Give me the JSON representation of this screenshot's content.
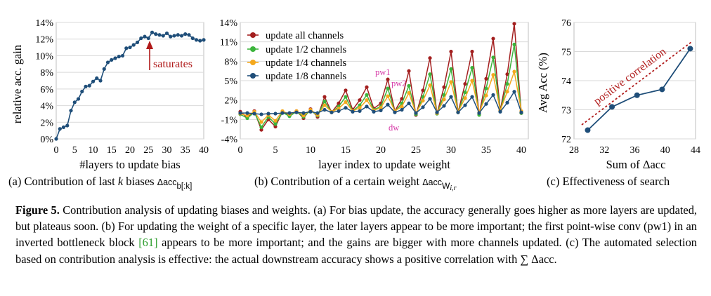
{
  "colors": {
    "blue": "#1f4e79",
    "red": "#a31f1f",
    "green": "#3cb43c",
    "orange": "#f4a81d",
    "anno_pink": "#d63aa8",
    "dark_red": "#b01a1a",
    "cite_green": "#2f9e2f"
  },
  "chart_data": [
    {
      "type": "line",
      "id": "a",
      "xlabel": "#layers to update bias",
      "ylabel": "relative acc. gain",
      "xlim": [
        0,
        40
      ],
      "ylim": [
        0,
        14
      ],
      "xticks": [
        "0",
        "5",
        "10",
        "15",
        "20",
        "25",
        "30",
        "35",
        "40"
      ],
      "yticks": [
        "0%",
        "2%",
        "4%",
        "6%",
        "8%",
        "10%",
        "12%",
        "14%"
      ],
      "series": [
        {
          "name": "bias",
          "x": [
            0,
            1,
            2,
            3,
            4,
            5,
            6,
            7,
            8,
            9,
            10,
            11,
            12,
            13,
            14,
            15,
            16,
            17,
            18,
            19,
            20,
            21,
            22,
            23,
            24,
            25,
            26,
            27,
            28,
            29,
            30,
            31,
            32,
            33,
            34,
            35,
            36,
            37,
            38,
            39,
            40
          ],
          "values": [
            0,
            1.2,
            1.4,
            1.6,
            3.4,
            4.4,
            4.8,
            5.7,
            6.3,
            6.4,
            6.9,
            7.3,
            7.0,
            8.4,
            9.2,
            9.5,
            9.7,
            9.9,
            10.0,
            10.9,
            11.0,
            11.3,
            11.6,
            12.1,
            12.3,
            12.1,
            12.8,
            12.6,
            12.5,
            12.4,
            12.7,
            12.3,
            12.4,
            12.5,
            12.4,
            12.6,
            12.5,
            12.1,
            11.9,
            11.8,
            11.9
          ]
        }
      ],
      "annotation": "saturates"
    },
    {
      "type": "line",
      "id": "b",
      "xlabel": "layer index to update weight",
      "ylabel": "",
      "xlim": [
        0,
        41
      ],
      "ylim": [
        -4,
        14
      ],
      "xticks": [
        "0",
        "5",
        "10",
        "15",
        "20",
        "25",
        "30",
        "35",
        "40"
      ],
      "yticks": [
        "-4%",
        "-1%",
        "2%",
        "5%",
        "8%",
        "11%",
        "14%"
      ],
      "legend": [
        "update all channels",
        "update 1/2 channels",
        "update 1/4 channels",
        "update 1/8 channels"
      ],
      "annotations": [
        "pw1",
        "pw2",
        "dw"
      ],
      "series": [
        {
          "name": "update all channels",
          "values": [
            0.2,
            -0.7,
            0.3,
            -2.6,
            -1.0,
            -2.1,
            0.2,
            -0.4,
            0.3,
            -0.8,
            0.6,
            -0.6,
            2.5,
            0.1,
            1.5,
            3.5,
            0.5,
            2.0,
            4.0,
            0.7,
            1.5,
            5.2,
            0.3,
            2.2,
            6.5,
            -0.3,
            3.5,
            8.5,
            -0.1,
            4.0,
            9.5,
            0.1,
            4.5,
            9.5,
            -0.2,
            5.3,
            11.5,
            0.4,
            6.0,
            13.8,
            0.0
          ]
        },
        {
          "name": "update 1/2 channels",
          "values": [
            -0.2,
            -0.8,
            0.1,
            -2.2,
            -0.6,
            -1.7,
            0.1,
            -0.5,
            0.2,
            -0.6,
            0.4,
            -0.4,
            1.8,
            0.1,
            1.0,
            2.5,
            0.3,
            1.2,
            2.8,
            0.5,
            1.0,
            3.8,
            0.2,
            1.5,
            4.2,
            -0.2,
            2.5,
            6.0,
            -0.1,
            2.8,
            6.8,
            0.1,
            3.2,
            7.0,
            -0.3,
            3.8,
            8.6,
            0.3,
            4.5,
            10.6,
            0.0
          ]
        },
        {
          "name": "update 1/4 channels",
          "values": [
            -0.1,
            -0.4,
            0.2,
            -1.4,
            -0.3,
            -1.2,
            0.3,
            -0.2,
            0.3,
            -0.4,
            0.5,
            -0.3,
            1.2,
            0.2,
            0.7,
            1.7,
            0.3,
            0.8,
            2.0,
            0.4,
            0.8,
            2.6,
            0.3,
            1.0,
            3.1,
            0.0,
            1.9,
            4.3,
            0.0,
            2.1,
            4.8,
            0.2,
            2.3,
            5.0,
            0.1,
            2.7,
            5.9,
            0.4,
            3.3,
            6.4,
            0.3
          ]
        },
        {
          "name": "update 1/8 channels",
          "values": [
            0.0,
            0.0,
            -0.1,
            -0.2,
            -0.1,
            -0.1,
            0.0,
            0.0,
            0.1,
            0.0,
            0.2,
            0.0,
            0.5,
            0.1,
            0.3,
            0.8,
            0.2,
            0.3,
            1.0,
            0.2,
            0.4,
            1.3,
            0.1,
            0.5,
            1.5,
            0.0,
            0.9,
            2.2,
            0.1,
            1.1,
            2.5,
            0.1,
            1.2,
            2.5,
            0.0,
            1.4,
            2.8,
            0.2,
            1.6,
            3.3,
            0.1
          ]
        }
      ]
    },
    {
      "type": "line",
      "id": "c",
      "xlabel": "Sum of Δacc",
      "ylabel": "Avg Acc (%)",
      "xlim": [
        28,
        44
      ],
      "ylim": [
        72,
        76
      ],
      "xticks": [
        "28",
        "32",
        "36",
        "40",
        "44"
      ],
      "yticks": [
        "72",
        "73",
        "74",
        "75",
        "76"
      ],
      "series": [
        {
          "name": "search",
          "x": [
            29.8,
            33.0,
            36.3,
            39.6,
            43.3
          ],
          "values": [
            72.3,
            73.1,
            73.5,
            73.7,
            75.1
          ]
        }
      ],
      "annotation": "positive correlation"
    }
  ],
  "subcaptions": {
    "a": "(a) Contribution of last",
    "a_var": "k",
    "a_mid": " biases ",
    "a_math": "Δacc",
    "a_sub": "b[:k]",
    "b": "(b) Contribution of a certain weight ",
    "b_math": "Δacc",
    "b_sub": "W",
    "b_sub_idx": "i,r",
    "c": "(c) Effectiveness of search"
  },
  "caption": {
    "label": "Figure 5.",
    "text1": " Contribution analysis of updating biases and weights. (a) For bias update, the accuracy generally goes higher as more layers are updated, but plateaus soon. (b) For updating the weight of a specific layer, the later layers appear to be more important; the first point-wise conv (pw1) in an inverted bottleneck block ",
    "cite": "[61]",
    "text2": " appears to be more important; and the gains are bigger with more channels updated. (c) The automated selection based on contribution analysis is effective: the actual downstream accuracy shows a positive correlation with ∑ Δacc."
  }
}
